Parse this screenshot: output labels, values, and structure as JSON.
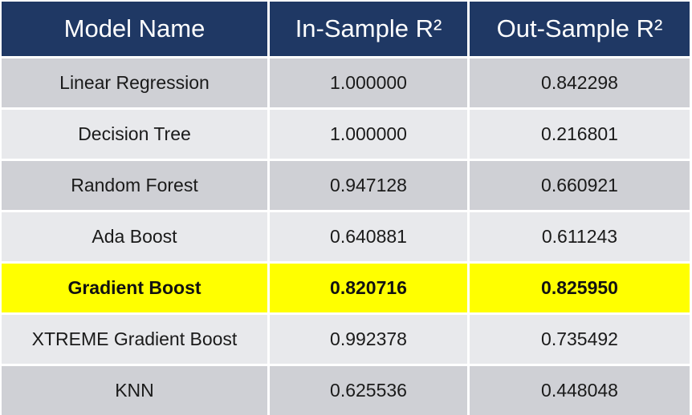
{
  "table": {
    "headers": [
      "Model Name",
      "In-Sample R²",
      "Out-Sample R²"
    ],
    "rows": [
      {
        "model": "Linear Regression",
        "in_sample": "1.000000",
        "out_sample": "0.842298"
      },
      {
        "model": "Decision Tree",
        "in_sample": "1.000000",
        "out_sample": "0.216801"
      },
      {
        "model": "Random Forest",
        "in_sample": "0.947128",
        "out_sample": "0.660921"
      },
      {
        "model": "Ada Boost",
        "in_sample": "0.640881",
        "out_sample": "0.611243"
      },
      {
        "model": "Gradient Boost",
        "in_sample": "0.820716",
        "out_sample": "0.825950"
      },
      {
        "model": "XTREME Gradient Boost",
        "in_sample": "0.992378",
        "out_sample": "0.735492"
      },
      {
        "model": "KNN",
        "in_sample": "0.625536",
        "out_sample": "0.448048"
      }
    ],
    "highlighted_row": "Gradient Boost",
    "colors": {
      "header_bg": "#1f3864",
      "header_text": "#ffffff",
      "row_dark": "#cfd0d5",
      "row_light": "#e8e9ec",
      "highlight": "#ffff00"
    }
  }
}
